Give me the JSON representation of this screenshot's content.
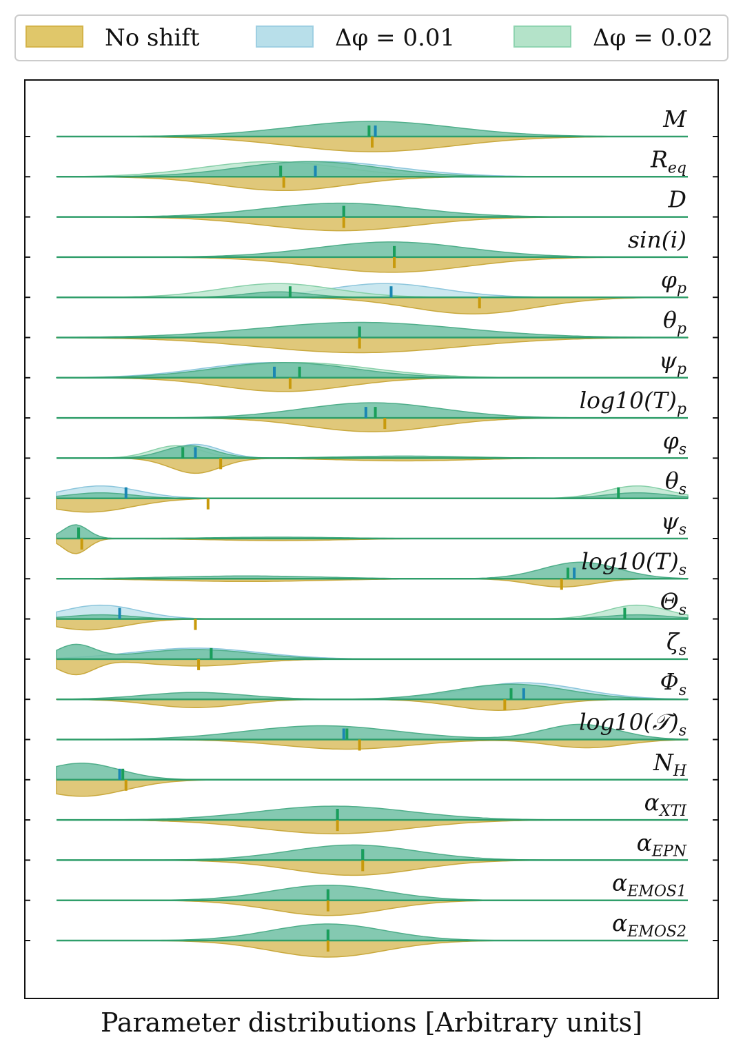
{
  "chart_data": {
    "type": "violin",
    "xlabel": "Parameter distributions [Arbitrary units]",
    "legend": {
      "placement": "top",
      "entries": [
        {
          "name": "No shift",
          "color": "#d4b44a"
        },
        {
          "name": "Δφ = 0.01",
          "color": "#9ecfe2"
        },
        {
          "name": "Δφ = 0.02",
          "color": "#8fd4b0"
        }
      ]
    },
    "overlap_color": "#6fbfa3",
    "median_colors": {
      "no_shift": "#c89a0c",
      "shift_01": "#1a86b3",
      "shift_02": "#1a9e5a"
    },
    "x_range": [
      0,
      1
    ],
    "rows": [
      {
        "label": [
          "M",
          ""
        ],
        "median": 0.5,
        "median_01": 0.505,
        "median_02": 0.495
      },
      {
        "label": [
          "R",
          "eq"
        ],
        "median": 0.36,
        "median_01": 0.41,
        "median_02": 0.355
      },
      {
        "label": [
          "D",
          ""
        ],
        "median": 0.455,
        "median_01": 0.455,
        "median_02": 0.455
      },
      {
        "label": [
          "sin(i)",
          ""
        ],
        "median": 0.535,
        "median_01": 0.535,
        "median_02": 0.535
      },
      {
        "label": [
          "φ",
          "p"
        ],
        "median": 0.67,
        "median_01": 0.53,
        "median_02": 0.37
      },
      {
        "label": [
          "θ",
          "p"
        ],
        "median": 0.48,
        "median_01": 0.48,
        "median_02": 0.48
      },
      {
        "label": [
          "ψ",
          "p"
        ],
        "median": 0.37,
        "median_01": 0.345,
        "median_02": 0.385
      },
      {
        "label": [
          "log10(T)",
          "p"
        ],
        "median": 0.52,
        "median_01": 0.49,
        "median_02": 0.505
      },
      {
        "label": [
          "φ",
          "s"
        ],
        "median": 0.26,
        "median_01": 0.22,
        "median_02": 0.2
      },
      {
        "label": [
          "θ",
          "s"
        ],
        "median": 0.24,
        "median_01": 0.11,
        "median_02": 0.89
      },
      {
        "label": [
          "ψ",
          "s"
        ],
        "median": 0.04,
        "median_01": 0.035,
        "median_02": 0.035
      },
      {
        "label": [
          "log10(T)",
          "s"
        ],
        "median": 0.8,
        "median_01": 0.82,
        "median_02": 0.81
      },
      {
        "label": [
          "Θ",
          "s"
        ],
        "median": 0.22,
        "median_01": 0.1,
        "median_02": 0.9
      },
      {
        "label": [
          "ζ",
          "s"
        ],
        "median": 0.225,
        "median_01": 0.245,
        "median_02": 0.245
      },
      {
        "label": [
          "Φ",
          "s"
        ],
        "median": 0.71,
        "median_01": 0.74,
        "median_02": 0.72
      },
      {
        "label": [
          "log10(𝒯)",
          "s"
        ],
        "median": 0.48,
        "median_01": 0.455,
        "median_02": 0.46
      },
      {
        "label": [
          "N",
          "H"
        ],
        "median": 0.11,
        "median_01": 0.1,
        "median_02": 0.105
      },
      {
        "label": [
          "α",
          "XTI"
        ],
        "median": 0.445,
        "median_01": 0.445,
        "median_02": 0.445
      },
      {
        "label": [
          "α",
          "EPN"
        ],
        "median": 0.485,
        "median_01": 0.485,
        "median_02": 0.485
      },
      {
        "label": [
          "α",
          "EMOS1"
        ],
        "median": 0.43,
        "median_01": 0.43,
        "median_02": 0.43
      },
      {
        "label": [
          "α",
          "EMOS2"
        ],
        "median": 0.43,
        "median_01": 0.43,
        "median_02": 0.43
      }
    ]
  }
}
